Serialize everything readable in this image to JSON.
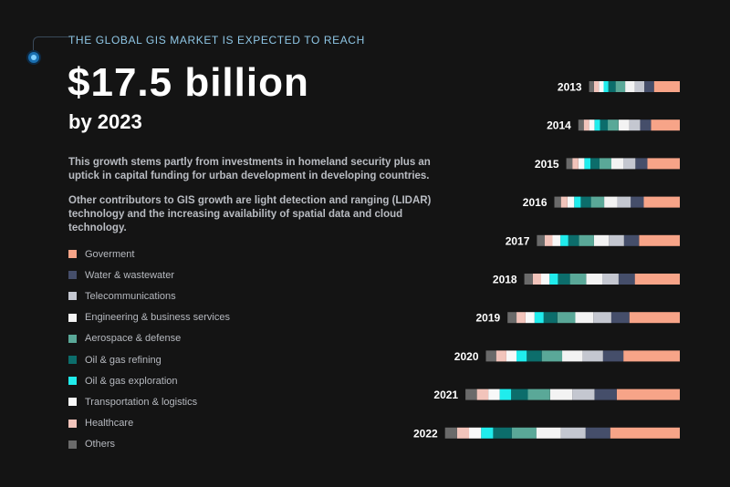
{
  "header": {
    "kicker": "THE GLOBAL GIS MARKET IS EXPECTED TO REACH",
    "headline": "$17.5 billion",
    "subheadline": "by 2023"
  },
  "body": {
    "paragraph1": "This growth stems partly from investments in homeland security plus an uptick in capital funding for urban development in developing countries.",
    "paragraph2": "Other contributors to GIS growth are light detection and ranging (LIDAR) technology and the increasing availability of spatial data and cloud technology."
  },
  "legend": [
    {
      "label": "Goverment",
      "color": "#f7a488"
    },
    {
      "label": "Water & wastewater",
      "color": "#454e6a"
    },
    {
      "label": "Telecommunications",
      "color": "#c4c7d0"
    },
    {
      "label": "Engineering & business services",
      "color": "#f3f3f3"
    },
    {
      "label": "Aerospace & defense",
      "color": "#5aa898"
    },
    {
      "label": "Oil & gas refining",
      "color": "#0c6d6b"
    },
    {
      "label": "Oil & gas exploration",
      "color": "#20ecec"
    },
    {
      "label": "Transportation & logistics",
      "color": "#f8f8f8"
    },
    {
      "label": "Healthcare",
      "color": "#f2c4bb"
    },
    {
      "label": "Others",
      "color": "#6a6a6a"
    }
  ],
  "chart_data": {
    "type": "bar",
    "stacked": true,
    "orientation": "horizontal",
    "categories": [
      "2013",
      "2014",
      "2015",
      "2016",
      "2017",
      "2018",
      "2019",
      "2020",
      "2021",
      "2022"
    ],
    "series_order_from_right": [
      "Goverment",
      "Water & wastewater",
      "Telecommunications",
      "Engineering & business services",
      "Aerospace & defense",
      "Oil & gas refining",
      "Oil & gas exploration",
      "Transportation & logistics",
      "Healthcare",
      "Others"
    ],
    "series": [
      {
        "name": "Goverment",
        "values": [
          4.3,
          4.8,
          5.4,
          6.0,
          6.8,
          7.5,
          8.4,
          9.4,
          10.5,
          11.6
        ]
      },
      {
        "name": "Water & wastewater",
        "values": [
          1.6,
          1.8,
          2.0,
          2.2,
          2.5,
          2.7,
          3.0,
          3.4,
          3.7,
          4.1
        ]
      },
      {
        "name": "Telecommunications",
        "values": [
          1.6,
          1.8,
          2.0,
          2.2,
          2.5,
          2.7,
          3.0,
          3.4,
          3.7,
          4.1
        ]
      },
      {
        "name": "Engineering & business services",
        "values": [
          1.6,
          1.8,
          2.0,
          2.2,
          2.5,
          2.7,
          3.0,
          3.4,
          3.7,
          4.1
        ]
      },
      {
        "name": "Aerospace & defense",
        "values": [
          1.6,
          1.8,
          2.0,
          2.2,
          2.5,
          2.7,
          3.0,
          3.4,
          3.7,
          4.1
        ]
      },
      {
        "name": "Oil & gas refining",
        "values": [
          1.2,
          1.3,
          1.5,
          1.7,
          1.8,
          2.0,
          2.3,
          2.5,
          2.8,
          3.1
        ]
      },
      {
        "name": "Oil & gas exploration",
        "values": [
          0.8,
          0.9,
          1.0,
          1.1,
          1.3,
          1.4,
          1.5,
          1.7,
          1.9,
          2.0
        ]
      },
      {
        "name": "Transportation & logistics",
        "values": [
          0.8,
          0.9,
          1.0,
          1.1,
          1.3,
          1.4,
          1.5,
          1.7,
          1.9,
          2.0
        ]
      },
      {
        "name": "Healthcare",
        "values": [
          0.8,
          0.9,
          1.0,
          1.1,
          1.3,
          1.4,
          1.5,
          1.7,
          1.9,
          2.0
        ]
      },
      {
        "name": "Others",
        "values": [
          0.8,
          0.9,
          1.0,
          1.1,
          1.3,
          1.4,
          1.5,
          1.7,
          1.9,
          2.0
        ]
      }
    ],
    "title": "",
    "xlabel": "",
    "ylabel": "",
    "axis_visible": false
  }
}
